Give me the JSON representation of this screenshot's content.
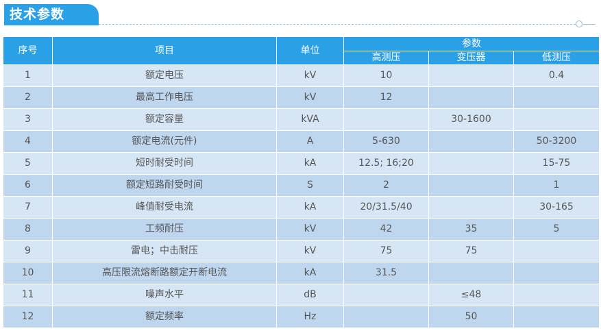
{
  "title": "技术参数",
  "table": {
    "headers": {
      "seq": "序号",
      "item": "项目",
      "unit": "单位",
      "params": "参数",
      "sub": [
        "高测压",
        "变压器",
        "低测压"
      ]
    },
    "rows": [
      {
        "seq": "1",
        "item": "额定电压",
        "unit": "kV",
        "high": "10",
        "trans": "",
        "low": "0.4"
      },
      {
        "seq": "2",
        "item": "最高工作电压",
        "unit": "kV",
        "high": "12",
        "trans": "",
        "low": ""
      },
      {
        "seq": "3",
        "item": "额定容量",
        "unit": "kVA",
        "high": "",
        "trans": "30-1600",
        "low": ""
      },
      {
        "seq": "4",
        "item": "额定电流(元件)",
        "unit": "A",
        "high": "5-630",
        "trans": "",
        "low": "50-3200"
      },
      {
        "seq": "5",
        "item": "短时耐受时间",
        "unit": "kA",
        "high": "12.5; 16;20",
        "trans": "",
        "low": "15-75"
      },
      {
        "seq": "6",
        "item": "额定短路耐受时间",
        "unit": "S",
        "high": "2",
        "trans": "",
        "low": "1"
      },
      {
        "seq": "7",
        "item": "峰值耐受电流",
        "unit": "kA",
        "high": "20/31.5/40",
        "trans": "",
        "low": "30-165"
      },
      {
        "seq": "8",
        "item": "工频耐压",
        "unit": "kV",
        "high": "42",
        "trans": "35",
        "low": "5"
      },
      {
        "seq": "9",
        "item": "雷电；中击耐压",
        "unit": "kV",
        "high": "75",
        "trans": "75",
        "low": ""
      },
      {
        "seq": "10",
        "item": "高压限流熔断路额定开断电流",
        "unit": "kA",
        "high": "31.5",
        "trans": "",
        "low": ""
      },
      {
        "seq": "11",
        "item": "噪声水平",
        "unit": "dB",
        "high": "",
        "trans": "≤48",
        "low": ""
      },
      {
        "seq": "12",
        "item": "额定频率",
        "unit": "Hz",
        "high": "",
        "trans": "50",
        "low": ""
      }
    ]
  },
  "colors": {
    "accent": "#2aa0e6",
    "row_light": "#d6e6f5",
    "row_dark": "#bed7ef"
  }
}
